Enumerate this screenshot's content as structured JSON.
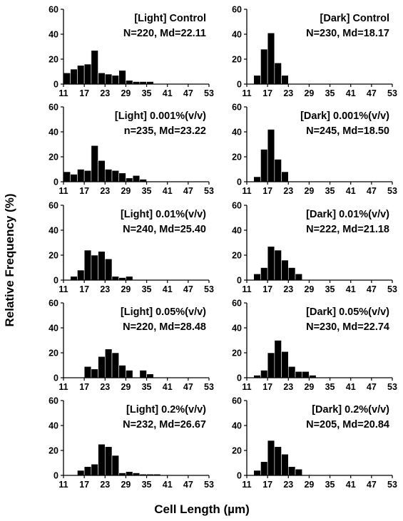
{
  "figure": {
    "ylabel": "Relative Frequency  (%)",
    "xlabel": "Cell Length (µm)"
  },
  "chart_data": [
    {
      "type": "bar",
      "title": "[Light] Control",
      "stats": "N=220, Md=22.11",
      "x_ticks": [
        "11",
        "17",
        "23",
        "29",
        "35",
        "41",
        "47",
        "53"
      ],
      "y_ticks": [
        "0",
        "20",
        "40",
        "60"
      ],
      "ylim": [
        0,
        60
      ],
      "xlim": [
        11,
        53
      ],
      "bins": [
        11,
        13,
        15,
        17,
        19,
        21,
        23,
        25,
        27,
        29,
        31,
        33,
        35,
        37,
        39,
        41,
        43,
        45,
        47,
        49,
        51
      ],
      "values": [
        9,
        12,
        15,
        16,
        27,
        9,
        8,
        7,
        11,
        3,
        2,
        2,
        2,
        0,
        0,
        0,
        0,
        0,
        0,
        0,
        0
      ]
    },
    {
      "type": "bar",
      "title": "[Dark] Control",
      "stats": "N=230, Md=18.17",
      "x_ticks": [
        "11",
        "17",
        "23",
        "29",
        "35",
        "41",
        "47",
        "53"
      ],
      "y_ticks": [
        "0",
        "20",
        "40",
        "60"
      ],
      "ylim": [
        0,
        60
      ],
      "xlim": [
        11,
        53
      ],
      "bins": [
        11,
        13,
        15,
        17,
        19,
        21,
        23,
        25,
        27,
        29,
        31,
        33,
        35,
        37,
        39,
        41,
        43,
        45,
        47,
        49,
        51
      ],
      "values": [
        0,
        7,
        28,
        41,
        17,
        7,
        0,
        0,
        0,
        0,
        0,
        0,
        0,
        0,
        0,
        0,
        0,
        0,
        0,
        0,
        0
      ]
    },
    {
      "type": "bar",
      "title": "[Light] 0.001%(v/v)",
      "stats": "n=235, Md=23.22",
      "x_ticks": [
        "11",
        "17",
        "23",
        "29",
        "35",
        "41",
        "47",
        "53"
      ],
      "y_ticks": [
        "0",
        "20",
        "40",
        "60"
      ],
      "ylim": [
        0,
        60
      ],
      "xlim": [
        11,
        53
      ],
      "bins": [
        11,
        13,
        15,
        17,
        19,
        21,
        23,
        25,
        27,
        29,
        31,
        33,
        35,
        37,
        39,
        41,
        43,
        45,
        47,
        49,
        51
      ],
      "values": [
        8,
        6,
        10,
        9,
        29,
        17,
        10,
        9,
        7,
        3,
        5,
        2,
        0,
        0,
        0,
        0,
        0,
        0,
        0,
        0,
        0
      ]
    },
    {
      "type": "bar",
      "title": "[Dark] 0.001%(v/v)",
      "stats": "N=245, Md=18.50",
      "x_ticks": [
        "11",
        "17",
        "23",
        "29",
        "35",
        "41",
        "47",
        "53"
      ],
      "y_ticks": [
        "0",
        "20",
        "40",
        "60"
      ],
      "ylim": [
        0,
        60
      ],
      "xlim": [
        11,
        53
      ],
      "bins": [
        11,
        13,
        15,
        17,
        19,
        21,
        23,
        25,
        27,
        29,
        31,
        33,
        35,
        37,
        39,
        41,
        43,
        45,
        47,
        49,
        51
      ],
      "values": [
        0,
        4,
        26,
        42,
        18,
        8,
        0,
        0,
        0,
        0,
        0,
        0,
        0,
        0,
        0,
        0,
        0,
        0,
        0,
        0,
        0
      ]
    },
    {
      "type": "bar",
      "title": "[Light] 0.01%(v/v)",
      "stats": "N=240, Md=25.40",
      "x_ticks": [
        "11",
        "17",
        "23",
        "29",
        "35",
        "41",
        "47",
        "53"
      ],
      "y_ticks": [
        "0",
        "20",
        "40",
        "60"
      ],
      "ylim": [
        0,
        60
      ],
      "xlim": [
        11,
        53
      ],
      "bins": [
        11,
        13,
        15,
        17,
        19,
        21,
        23,
        25,
        27,
        29,
        31,
        33,
        35,
        37,
        39,
        41,
        43,
        45,
        47,
        49,
        51
      ],
      "values": [
        0,
        3,
        8,
        24,
        20,
        23,
        17,
        3,
        2,
        3,
        0,
        0,
        0,
        0,
        0,
        0,
        0,
        0,
        0,
        0,
        0
      ]
    },
    {
      "type": "bar",
      "title": "[Dark] 0.01%(v/v)",
      "stats": "N=222, Md=21.18",
      "x_ticks": [
        "11",
        "17",
        "23",
        "29",
        "35",
        "41",
        "47",
        "53"
      ],
      "y_ticks": [
        "0",
        "20",
        "40",
        "60"
      ],
      "ylim": [
        0,
        60
      ],
      "xlim": [
        11,
        53
      ],
      "bins": [
        11,
        13,
        15,
        17,
        19,
        21,
        23,
        25,
        27,
        29,
        31,
        33,
        35,
        37,
        39,
        41,
        43,
        45,
        47,
        49,
        51
      ],
      "values": [
        0,
        5,
        10,
        27,
        24,
        16,
        10,
        5,
        0,
        0,
        0,
        0,
        0,
        0,
        0,
        0,
        0,
        0,
        0,
        0,
        0
      ]
    },
    {
      "type": "bar",
      "title": "[Light] 0.05%(v/v)",
      "stats": "N=220, Md=28.48",
      "x_ticks": [
        "11",
        "17",
        "23",
        "29",
        "35",
        "41",
        "47",
        "53"
      ],
      "y_ticks": [
        "0",
        "20",
        "40",
        "60"
      ],
      "ylim": [
        0,
        60
      ],
      "xlim": [
        11,
        53
      ],
      "bins": [
        11,
        13,
        15,
        17,
        19,
        21,
        23,
        25,
        27,
        29,
        31,
        33,
        35,
        37,
        39,
        41,
        43,
        45,
        47,
        49,
        51
      ],
      "values": [
        0,
        0,
        0,
        9,
        7,
        17,
        23,
        20,
        10,
        6,
        0,
        6,
        3,
        0,
        0,
        0,
        0,
        0,
        0,
        0,
        0
      ]
    },
    {
      "type": "bar",
      "title": "[Dark] 0.05%(v/v)",
      "stats": "N=230, Md=22.74",
      "x_ticks": [
        "11",
        "17",
        "23",
        "29",
        "35",
        "41",
        "47",
        "53"
      ],
      "y_ticks": [
        "0",
        "20",
        "40",
        "60"
      ],
      "ylim": [
        0,
        60
      ],
      "xlim": [
        11,
        53
      ],
      "bins": [
        11,
        13,
        15,
        17,
        19,
        21,
        23,
        25,
        27,
        29,
        31,
        33,
        35,
        37,
        39,
        41,
        43,
        45,
        47,
        49,
        51
      ],
      "values": [
        0,
        2,
        6,
        20,
        30,
        21,
        9,
        5,
        5,
        2,
        0,
        0,
        0,
        0,
        0,
        0,
        0,
        0,
        0,
        0,
        0
      ]
    },
    {
      "type": "bar",
      "title": "[Light] 0.2%(v/v)",
      "stats": "N=232, Md=26.67",
      "x_ticks": [
        "11",
        "17",
        "23",
        "29",
        "35",
        "41",
        "47",
        "53"
      ],
      "y_ticks": [
        "0",
        "20",
        "40",
        "60"
      ],
      "ylim": [
        0,
        60
      ],
      "xlim": [
        11,
        53
      ],
      "bins": [
        11,
        13,
        15,
        17,
        19,
        21,
        23,
        25,
        27,
        29,
        31,
        33,
        35,
        37,
        39,
        41,
        43,
        45,
        47,
        49,
        51
      ],
      "values": [
        0,
        0,
        4,
        7,
        9,
        25,
        23,
        16,
        2,
        3,
        2,
        1,
        1,
        1,
        0,
        0,
        0,
        0,
        0,
        0,
        0
      ]
    },
    {
      "type": "bar",
      "title": "[Dark] 0.2%(v/v)",
      "stats": "N=205, Md=20.84",
      "x_ticks": [
        "11",
        "17",
        "23",
        "29",
        "35",
        "41",
        "47",
        "53"
      ],
      "y_ticks": [
        "0",
        "20",
        "40",
        "60"
      ],
      "ylim": [
        0,
        60
      ],
      "xlim": [
        11,
        53
      ],
      "bins": [
        11,
        13,
        15,
        17,
        19,
        21,
        23,
        25,
        27,
        29,
        31,
        33,
        35,
        37,
        39,
        41,
        43,
        45,
        47,
        49,
        51
      ],
      "values": [
        0,
        4,
        11,
        28,
        23,
        17,
        7,
        5,
        0,
        0,
        0,
        0,
        0,
        0,
        0,
        0,
        0,
        0,
        0,
        0,
        0
      ]
    }
  ]
}
